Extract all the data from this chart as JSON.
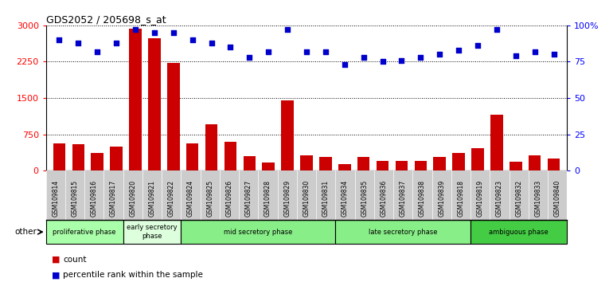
{
  "title": "GDS2052 / 205698_s_at",
  "samples": [
    "GSM109814",
    "GSM109815",
    "GSM109816",
    "GSM109817",
    "GSM109820",
    "GSM109821",
    "GSM109822",
    "GSM109824",
    "GSM109825",
    "GSM109826",
    "GSM109827",
    "GSM109828",
    "GSM109829",
    "GSM109830",
    "GSM109831",
    "GSM109834",
    "GSM109835",
    "GSM109836",
    "GSM109837",
    "GSM109838",
    "GSM109839",
    "GSM109818",
    "GSM109819",
    "GSM109823",
    "GSM109832",
    "GSM109833",
    "GSM109840"
  ],
  "counts": [
    560,
    550,
    370,
    490,
    2930,
    2730,
    2230,
    560,
    950,
    590,
    300,
    170,
    1450,
    310,
    290,
    130,
    280,
    200,
    200,
    200,
    290,
    360,
    470,
    1150,
    190,
    320,
    250
  ],
  "percentiles": [
    90,
    88,
    82,
    88,
    97,
    95,
    95,
    90,
    88,
    85,
    78,
    82,
    97,
    82,
    82,
    73,
    78,
    75,
    76,
    78,
    80,
    83,
    86,
    97,
    79,
    82,
    80
  ],
  "phases": [
    {
      "name": "proliferative phase",
      "start": 0,
      "end": 4,
      "color": "#aaffaa"
    },
    {
      "name": "early secretory\nphase",
      "start": 4,
      "end": 7,
      "color": "#ddffdd"
    },
    {
      "name": "mid secretory phase",
      "start": 7,
      "end": 15,
      "color": "#88ee88"
    },
    {
      "name": "late secretory phase",
      "start": 15,
      "end": 22,
      "color": "#88ee88"
    },
    {
      "name": "ambiguous phase",
      "start": 22,
      "end": 27,
      "color": "#44cc44"
    }
  ],
  "bar_color": "#cc0000",
  "dot_color": "#0000cc",
  "left_ylim": [
    0,
    3000
  ],
  "right_ylim": [
    0,
    100
  ],
  "left_yticks": [
    0,
    750,
    1500,
    2250,
    3000
  ],
  "right_yticks": [
    0,
    25,
    50,
    75,
    100
  ],
  "left_yticklabels": [
    "0",
    "750",
    "1500",
    "2250",
    "3000"
  ],
  "right_yticklabels": [
    "0",
    "25",
    "50",
    "75",
    "100%"
  ],
  "other_label": "other",
  "legend_count_label": "count",
  "legend_percentile_label": "percentile rank within the sample",
  "xtick_bg_color": "#cccccc",
  "phase_border_color": "#000000"
}
